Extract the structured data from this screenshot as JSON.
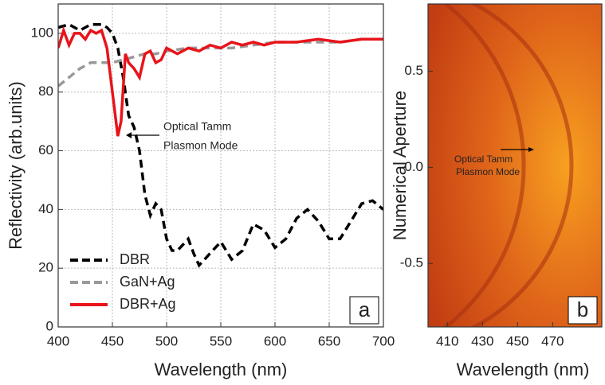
{
  "chart_data": [
    {
      "type": "line",
      "xlabel": "Wavelength (nm)",
      "ylabel": "Reflectivity (arb.units)",
      "xlim": [
        400,
        700
      ],
      "xticks": [
        400,
        450,
        500,
        550,
        600,
        650,
        700
      ],
      "ylim": [
        0,
        110
      ],
      "yticks": [
        0,
        20,
        40,
        60,
        80,
        100
      ],
      "grid": true,
      "legend": "lower left",
      "series": [
        {
          "name": "DBR",
          "color": "#000000",
          "dash": true,
          "x": [
            400,
            410,
            420,
            430,
            440,
            445,
            450,
            455,
            460,
            465,
            470,
            475,
            480,
            485,
            490,
            495,
            500,
            505,
            510,
            515,
            520,
            525,
            530,
            540,
            550,
            560,
            570,
            580,
            590,
            600,
            610,
            620,
            630,
            640,
            650,
            660,
            670,
            680,
            690,
            700
          ],
          "values": [
            102,
            103,
            101,
            103,
            103,
            102,
            100,
            95,
            85,
            72,
            68,
            60,
            45,
            38,
            42,
            40,
            30,
            26,
            26,
            28,
            30,
            25,
            21,
            25,
            29,
            23,
            26,
            35,
            33,
            27,
            30,
            37,
            40,
            36,
            30,
            30,
            36,
            42,
            43,
            40
          ]
        },
        {
          "name": "GaN+Ag",
          "color": "#999999",
          "dash": true,
          "x": [
            400,
            410,
            420,
            430,
            440,
            450,
            460,
            470,
            480,
            490,
            500,
            520,
            540,
            560,
            580,
            600,
            620,
            640,
            660,
            680,
            700
          ],
          "values": [
            82,
            85,
            88,
            90,
            90,
            90,
            91,
            92,
            93,
            93,
            94,
            95,
            95,
            95,
            96,
            97,
            97,
            97,
            97,
            98,
            98
          ]
        },
        {
          "name": "DBR+Ag",
          "color": "#e8141b",
          "dash": false,
          "x": [
            400,
            405,
            410,
            415,
            420,
            425,
            430,
            435,
            440,
            445,
            450,
            455,
            458,
            462,
            465,
            470,
            475,
            480,
            485,
            490,
            495,
            500,
            510,
            520,
            530,
            540,
            550,
            560,
            570,
            580,
            590,
            600,
            620,
            640,
            660,
            680,
            700
          ],
          "values": [
            95,
            101,
            96,
            100,
            100,
            98,
            101,
            100,
            101,
            95,
            80,
            65,
            70,
            93,
            90,
            88,
            85,
            93,
            94,
            90,
            91,
            95,
            93,
            95,
            94,
            96,
            95,
            97,
            96,
            97,
            96,
            97,
            97,
            98,
            97,
            98,
            98
          ]
        }
      ],
      "annotation": [
        "Optical Tamm",
        "Plasmon Mode"
      ],
      "panel": "a"
    },
    {
      "type": "image",
      "xlabel": "Wavelength (nm)",
      "ylabel": "Numerical Aperture",
      "xlim": [
        399,
        498
      ],
      "xticks": [
        410,
        430,
        450,
        470
      ],
      "ylim": [
        -0.83,
        0.85
      ],
      "yticks": [
        {
          "value": 0.5,
          "label": "0.5"
        },
        {
          "value": 0,
          "label": "0.0"
        },
        {
          "value": -0.5,
          "label": "-0.5"
        }
      ],
      "annotation": [
        "Optical Tamm",
        "Plasmon Mode"
      ],
      "panel": "b"
    }
  ]
}
